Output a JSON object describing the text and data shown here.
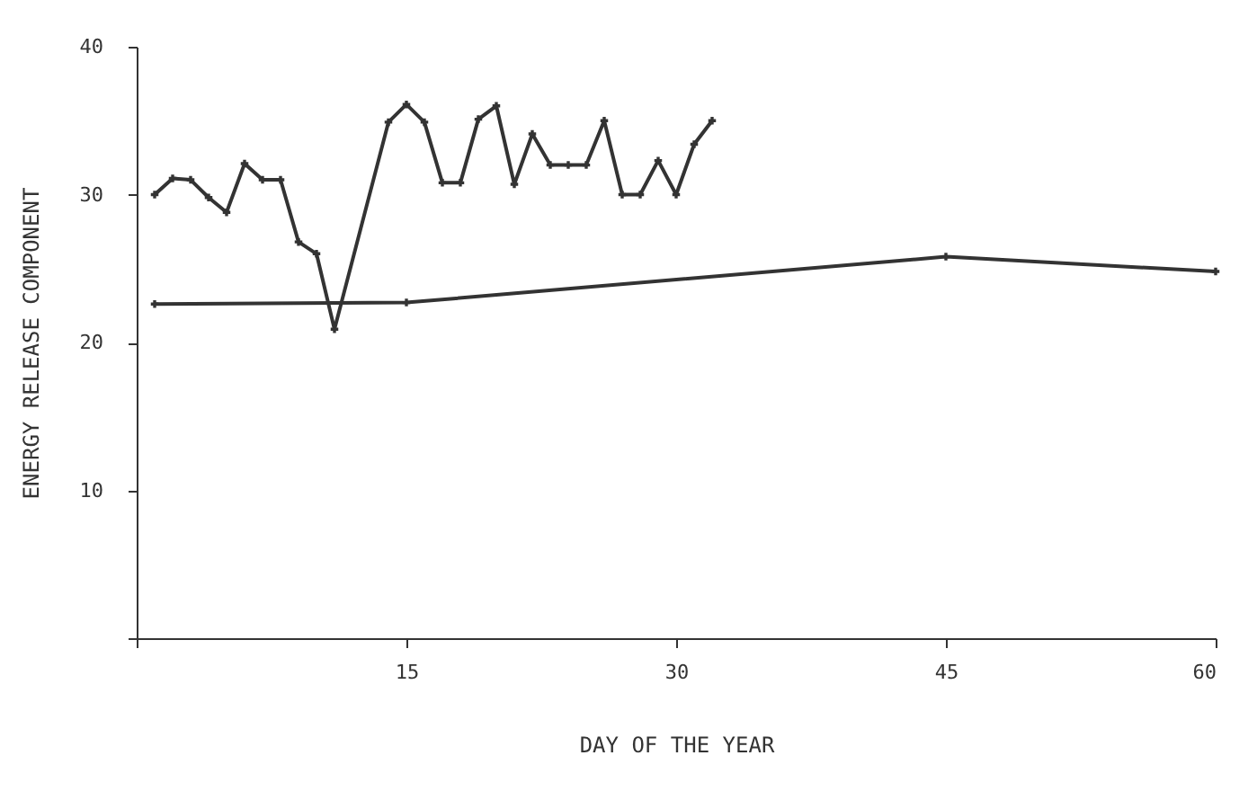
{
  "chart_data": {
    "type": "line",
    "xlabel": "DAY OF THE YEAR",
    "ylabel": "ENERGY RELEASE COMPONENT",
    "xlim": [
      0,
      60
    ],
    "xticks": [
      {
        "value": 0,
        "label": null
      },
      15,
      30,
      45,
      60
    ],
    "ylim": [
      0,
      40
    ],
    "yticks": [
      {
        "value": 0,
        "label": null
      },
      10,
      20,
      30,
      40
    ],
    "grid": false,
    "marker": "cross",
    "line_style": "solid",
    "series": [
      {
        "color": "#333333",
        "x": [
          1,
          2,
          3,
          4,
          5,
          6,
          7,
          8,
          9,
          10,
          11,
          14,
          15,
          16,
          17,
          18,
          19,
          20,
          21,
          22,
          23,
          24,
          25,
          26,
          27,
          28,
          29,
          30,
          31,
          32
        ],
        "values": [
          30,
          31.1,
          31,
          29.8,
          28.8,
          32.1,
          31,
          31,
          26.8,
          26,
          20.9,
          34.9,
          36.1,
          34.9,
          30.8,
          30.8,
          35.1,
          36,
          30.7,
          34.1,
          32,
          32,
          32,
          35,
          30,
          30,
          32.3,
          30,
          33.4,
          35
        ]
      },
      {
        "color": "#333333",
        "x": [
          1,
          15,
          45,
          60
        ],
        "values": [
          22.6,
          22.7,
          25.8,
          24.8
        ]
      }
    ]
  }
}
